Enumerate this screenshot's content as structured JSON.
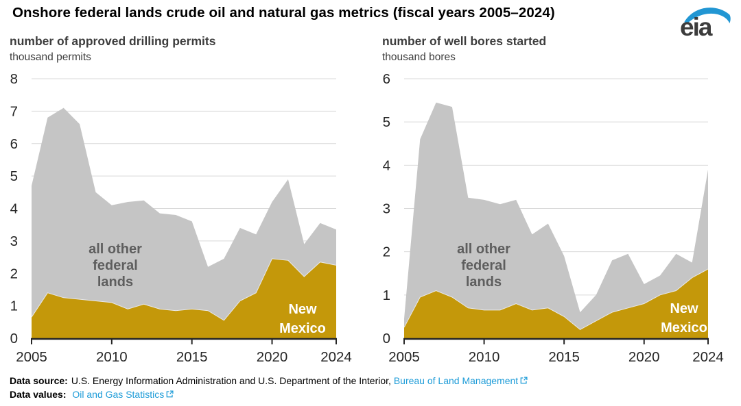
{
  "header": {
    "title": "Onshore federal lands crude oil and natural gas metrics (fiscal years 2005–2024)",
    "logo_text": "eia",
    "logo_blue": "#2196d3"
  },
  "chart_data": [
    {
      "type": "area",
      "stacked": true,
      "title": "number of approved drilling permits",
      "ylabel": "thousand permits",
      "x": [
        2005,
        2006,
        2007,
        2008,
        2009,
        2010,
        2011,
        2012,
        2013,
        2014,
        2015,
        2016,
        2017,
        2018,
        2019,
        2020,
        2021,
        2022,
        2023,
        2024
      ],
      "series": [
        {
          "name": "New Mexico",
          "color": "#c4980a",
          "values": [
            0.65,
            1.4,
            1.25,
            1.2,
            1.15,
            1.1,
            0.9,
            1.05,
            0.9,
            0.85,
            0.9,
            0.85,
            0.55,
            1.15,
            1.4,
            2.45,
            2.4,
            1.9,
            2.35,
            2.25
          ]
        },
        {
          "name": "all other federal lands",
          "color": "#c5c5c5",
          "values": [
            4.05,
            5.4,
            5.85,
            5.4,
            3.35,
            3.0,
            3.3,
            3.2,
            2.95,
            2.95,
            2.7,
            1.35,
            1.9,
            2.25,
            1.8,
            1.75,
            2.5,
            1.0,
            1.2,
            1.1
          ]
        }
      ],
      "ylim": [
        0,
        8
      ],
      "ytick_interval": 1,
      "xticks": [
        2005,
        2010,
        2015,
        2020,
        2024
      ],
      "grid": true,
      "legend_position": "in-chart-labels",
      "annotations": [
        {
          "lines": [
            "all other",
            "federal",
            "lands"
          ],
          "color": "#5e5e5e"
        },
        {
          "lines": [
            "New",
            "Mexico"
          ],
          "color": "#ffffff"
        }
      ]
    },
    {
      "type": "area",
      "stacked": true,
      "title": "number of well bores started",
      "ylabel": "thousand bores",
      "x": [
        2005,
        2006,
        2007,
        2008,
        2009,
        2010,
        2011,
        2012,
        2013,
        2014,
        2015,
        2016,
        2017,
        2018,
        2019,
        2020,
        2021,
        2022,
        2023,
        2024
      ],
      "series": [
        {
          "name": "New Mexico",
          "color": "#c4980a",
          "values": [
            0.25,
            0.95,
            1.1,
            0.95,
            0.7,
            0.65,
            0.65,
            0.8,
            0.65,
            0.7,
            0.5,
            0.2,
            0.4,
            0.6,
            0.7,
            0.8,
            1.0,
            1.1,
            1.4,
            1.6
          ]
        },
        {
          "name": "all other federal lands",
          "color": "#c5c5c5",
          "values": [
            0.2,
            3.65,
            4.35,
            4.4,
            2.55,
            2.55,
            2.45,
            2.4,
            1.75,
            1.95,
            1.4,
            0.4,
            0.6,
            1.2,
            1.25,
            0.45,
            0.45,
            0.85,
            0.35,
            2.3
          ]
        }
      ],
      "ylim": [
        0,
        6
      ],
      "ytick_interval": 1,
      "xticks": [
        2005,
        2010,
        2015,
        2020,
        2024
      ],
      "grid": true,
      "legend_position": "in-chart-labels",
      "annotations": [
        {
          "lines": [
            "all other",
            "federal",
            "lands"
          ],
          "color": "#5e5e5e"
        },
        {
          "lines": [
            "New",
            "Mexico"
          ],
          "color": "#ffffff"
        }
      ]
    }
  ],
  "style_colors": {
    "gridline": "#d9d9d9",
    "axis": "#262626",
    "tick_label": "#262626",
    "series_divider": "#e9e9e9",
    "link_blue": "#1e9cd8"
  },
  "footer": {
    "source_label": "Data source:",
    "source_text": "U.S. Energy Information Administration and U.S. Department of the Interior,",
    "source_link": "Bureau of Land Management",
    "values_label": "Data values:",
    "values_link": "Oil and Gas Statistics"
  }
}
